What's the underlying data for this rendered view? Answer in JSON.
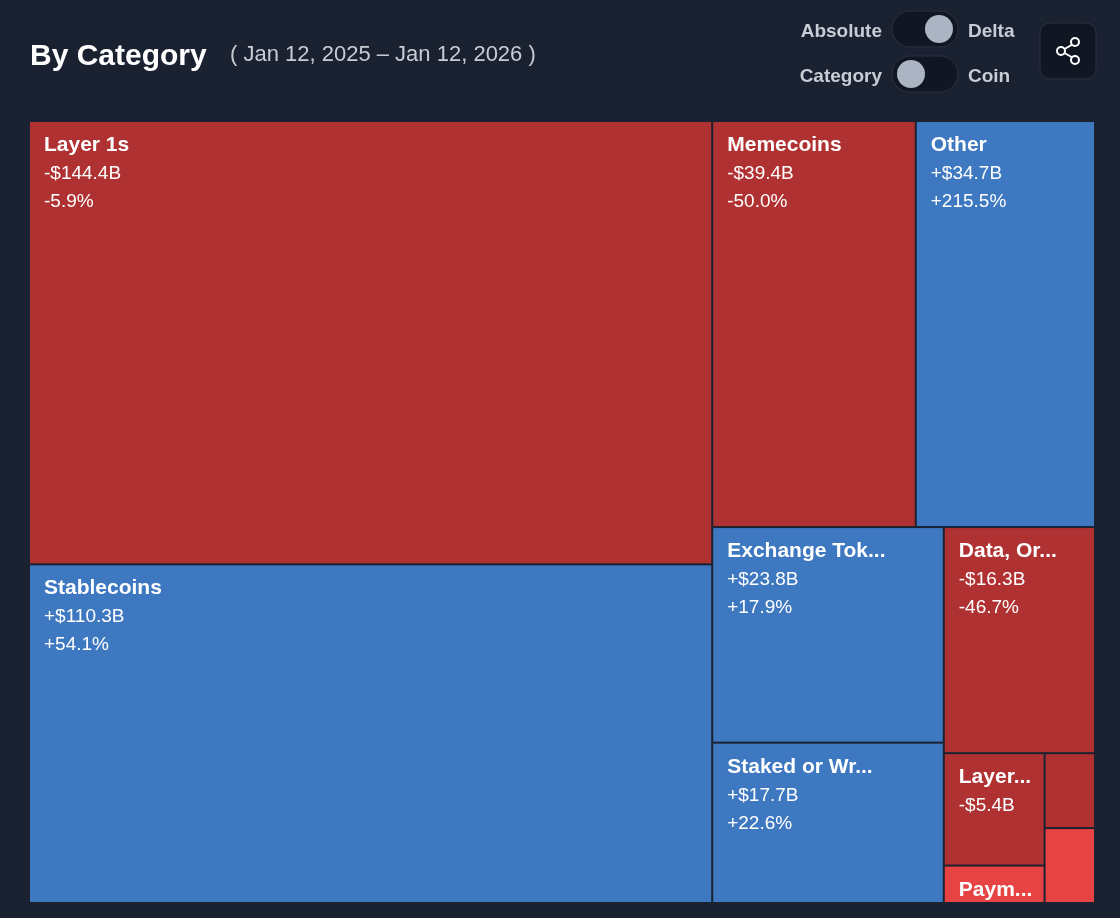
{
  "chart_data": {
    "type": "other",
    "title": "By Category",
    "subtitle": "( Jan 12, 2025 – Jan 12, 2026 )",
    "categories": [
      "Layer 1s",
      "Stablecoins",
      "Memecoins",
      "Other",
      "Exchange Tok...",
      "Staked or Wr...",
      "Data, Or...",
      "Layer...",
      "Paym...",
      null,
      null
    ],
    "series": [
      {
        "colors": [
          "#b03131",
          "#3d78c0",
          "#b03131",
          "#3d78c0",
          "#3d78c0",
          "#3d78c0",
          "#b03131",
          "#b03131",
          "#e84343",
          "#b03131",
          "#e84343"
        ],
        "values": [
          -144.4,
          110.3,
          -39.4,
          34.7,
          23.8,
          17.7,
          -16.3,
          -5.4,
          null,
          null,
          null
        ],
        "value_labels": [
          "-$144.4B",
          "+$110.3B",
          "-$39.4B",
          "+$34.7B",
          "+$23.8B",
          "+$17.7B",
          "-$16.3B",
          "-$5.4B",
          null,
          null,
          null
        ]
      },
      {
        "values": [
          -5.9,
          54.1,
          -50.0,
          215.5,
          17.9,
          22.6,
          -46.7,
          null,
          null,
          null,
          null
        ],
        "value_labels": [
          "-5.9%",
          "+54.1%",
          "-50.0%",
          "+215.5%",
          "+17.9%",
          "+22.6%",
          "-46.7%",
          null,
          null,
          null,
          null
        ]
      }
    ],
    "annotations": [
      "Absolute",
      "Delta",
      "Category",
      "Coin"
    ]
  }
}
